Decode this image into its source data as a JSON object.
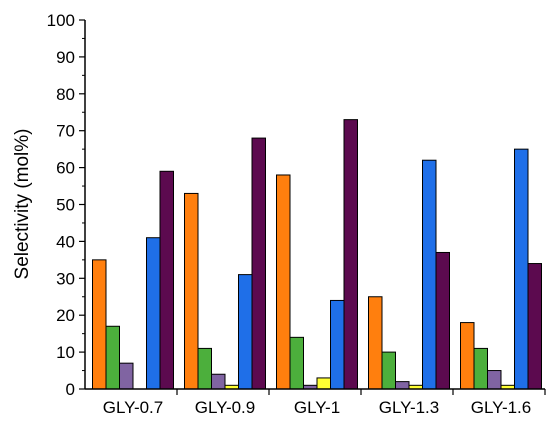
{
  "chart_data": {
    "type": "bar",
    "title": "",
    "xlabel": "",
    "ylabel": "Selectivity (mol%)",
    "ylim": [
      0,
      100
    ],
    "yticks": [
      0,
      10,
      20,
      30,
      40,
      50,
      60,
      70,
      80,
      90,
      100
    ],
    "grid": false,
    "legend": "none",
    "categories": [
      "GLY-0.7",
      "GLY-0.9",
      "GLY-1",
      "GLY-1.3",
      "GLY-1.6"
    ],
    "series": [
      {
        "color": "#ff7f0e",
        "values": [
          35,
          53,
          58,
          25,
          18
        ]
      },
      {
        "color": "#4caf3c",
        "values": [
          17,
          11,
          14,
          10,
          11
        ]
      },
      {
        "color": "#8064a2",
        "values": [
          7,
          4,
          1,
          2,
          5
        ]
      },
      {
        "color": "#ffff33",
        "values": [
          0,
          1,
          3,
          1,
          1
        ]
      },
      {
        "color": "#1f6fe8",
        "values": [
          41,
          31,
          24,
          62,
          65
        ]
      },
      {
        "color": "#5c0a4f",
        "values": [
          59,
          68,
          73,
          37,
          34
        ]
      }
    ]
  }
}
